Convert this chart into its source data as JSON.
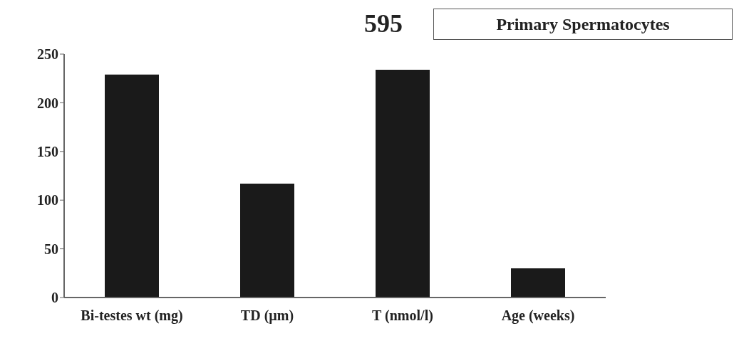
{
  "chart_data": {
    "type": "bar",
    "title": "595",
    "annotations": [
      "Primary Spermatocytes"
    ],
    "categories": [
      "Bi-testes wt (mg)",
      "TD (µm)",
      "T (nmol/l)",
      "Age (weeks)"
    ],
    "values": [
      229,
      117,
      234,
      30
    ],
    "color": "#1a1a1a",
    "ylim": [
      0,
      250
    ],
    "yticks": [
      0,
      50,
      100,
      150,
      200,
      250
    ],
    "grid": false,
    "legend": false
  }
}
